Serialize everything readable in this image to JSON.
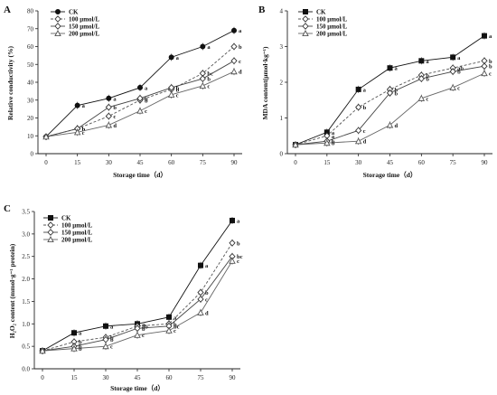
{
  "chart_data": [
    {
      "panel_label": "A",
      "type": "line",
      "x": [
        0,
        15,
        30,
        45,
        60,
        75,
        90
      ],
      "xlabel": "Storage time（d）",
      "ylabel": "Relative conductivity (%)",
      "ylim": [
        0,
        80
      ],
      "yticks": [
        0,
        10,
        20,
        30,
        40,
        50,
        60,
        70,
        80
      ],
      "series": [
        {
          "name": "CK",
          "marker": "filled-circle",
          "line": "solid",
          "values": [
            9.5,
            27,
            31,
            37,
            54,
            60,
            69
          ],
          "letters": [
            "",
            "a",
            "a",
            "a",
            "a",
            "a",
            "a"
          ]
        },
        {
          "name": "100 μmol/L",
          "marker": "open-diamond",
          "line": "dashed",
          "values": [
            9.5,
            14,
            21,
            30,
            36,
            45,
            60
          ],
          "letters": [
            "",
            "b",
            "c",
            "b",
            "b",
            "bc",
            "b"
          ]
        },
        {
          "name": "150 μmol/L",
          "marker": "open-diamond",
          "line": "solid",
          "values": [
            9.5,
            14,
            26,
            31,
            37,
            42,
            52
          ],
          "letters": [
            "",
            "b",
            "b",
            "b",
            "b",
            "b",
            "c"
          ]
        },
        {
          "name": "200 μmol/L",
          "marker": "open-triangle",
          "line": "solid",
          "values": [
            9.5,
            12,
            16,
            24,
            33,
            38,
            46
          ],
          "letters": [
            "",
            "c",
            "d",
            "c",
            "c",
            "c",
            "d"
          ]
        }
      ]
    },
    {
      "panel_label": "B",
      "type": "line",
      "x": [
        0,
        15,
        30,
        45,
        60,
        75,
        90
      ],
      "xlabel": "Storage time（d）",
      "ylabel": "MDA content(μmol·kg⁻¹)",
      "ylim": [
        0,
        4
      ],
      "yticks": [
        0,
        1,
        2,
        3,
        4
      ],
      "series": [
        {
          "name": "CK",
          "marker": "filled-square",
          "line": "solid",
          "values": [
            0.25,
            0.6,
            1.8,
            2.4,
            2.6,
            2.7,
            3.3
          ],
          "letters": [
            "",
            "a",
            "a",
            "a",
            "a",
            "a",
            "a"
          ]
        },
        {
          "name": "100 μmol/L",
          "marker": "open-diamond",
          "line": "dashed",
          "values": [
            0.25,
            0.5,
            1.3,
            1.8,
            2.2,
            2.4,
            2.6
          ],
          "letters": [
            "",
            "a",
            "b",
            "b",
            "b",
            "ab",
            "b"
          ]
        },
        {
          "name": "150 μmol/L",
          "marker": "open-diamond",
          "line": "solid",
          "values": [
            0.25,
            0.35,
            0.65,
            1.7,
            2.1,
            2.3,
            2.45
          ],
          "letters": [
            "",
            "b",
            "c",
            "b",
            "b",
            "b",
            "b"
          ]
        },
        {
          "name": "200 μmol/L",
          "marker": "open-triangle",
          "line": "solid",
          "values": [
            0.25,
            0.3,
            0.35,
            0.8,
            1.55,
            1.85,
            2.25
          ],
          "letters": [
            "",
            "b",
            "d",
            "d",
            "c",
            "c",
            "c"
          ]
        }
      ]
    },
    {
      "panel_label": "C",
      "type": "line",
      "x": [
        0,
        15,
        30,
        45,
        60,
        75,
        90
      ],
      "xlabel": "Storage time（d）",
      "ylabel": "H₂O₂ content (mmol·g⁻¹ protein)",
      "ylim": [
        0,
        3.5
      ],
      "yticks": [
        0.0,
        0.5,
        1.0,
        1.5,
        2.0,
        2.5,
        3.0,
        3.5
      ],
      "series": [
        {
          "name": "CK",
          "marker": "filled-square",
          "line": "solid",
          "values": [
            0.4,
            0.8,
            0.95,
            1.0,
            1.15,
            2.3,
            3.3
          ],
          "letters": [
            "",
            "a",
            "a",
            "a",
            "a",
            "a",
            "a"
          ]
        },
        {
          "name": "100 μmol/L",
          "marker": "open-diamond",
          "line": "dashed",
          "values": [
            0.4,
            0.6,
            0.7,
            0.95,
            1.0,
            1.7,
            2.8
          ],
          "letters": [
            "",
            "b",
            "b",
            "ab",
            "b",
            "b",
            "b"
          ]
        },
        {
          "name": "150 μmol/L",
          "marker": "open-diamond",
          "line": "solid",
          "values": [
            0.4,
            0.5,
            0.65,
            0.9,
            0.95,
            1.55,
            2.5
          ],
          "letters": [
            "",
            "b",
            "b",
            "b",
            "bc",
            "c",
            "bc"
          ]
        },
        {
          "name": "200 μmol/L",
          "marker": "open-triangle",
          "line": "solid",
          "values": [
            0.4,
            0.45,
            0.5,
            0.75,
            0.85,
            1.25,
            2.4
          ],
          "letters": [
            "",
            "b",
            "c",
            "c",
            "c",
            "d",
            "c"
          ]
        }
      ]
    }
  ]
}
